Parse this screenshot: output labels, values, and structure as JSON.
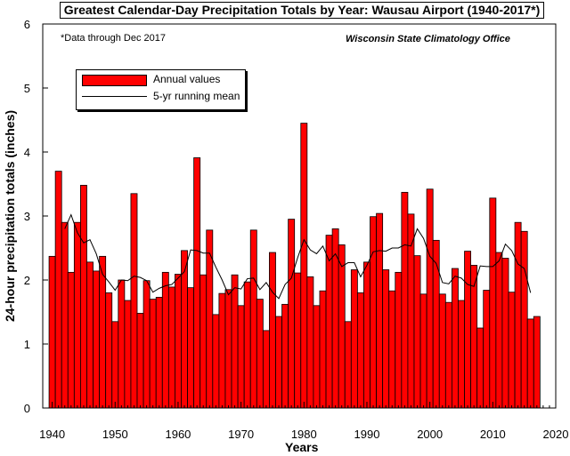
{
  "title": "Greatest Calendar-Day Precipitation Totals by Year: Wausau Airport (1940-2017*)",
  "note": "*Data through Dec 2017",
  "source": "Wisconsin State Climatology Office",
  "legend": {
    "annual": "Annual values",
    "running": "5-yr running mean"
  },
  "colors": {
    "bar": "#ff0000",
    "line": "#000000"
  },
  "chart_data": {
    "type": "bar",
    "title": "Greatest Calendar-Day Precipitation Totals by Year: Wausau Airport (1940-2017*)",
    "xlabel": "Years",
    "ylabel": "24-hour precipitation totals (inches)",
    "xlim": [
      1938.5,
      2020
    ],
    "ylim": [
      0,
      6
    ],
    "xticks": [
      1940,
      1950,
      1960,
      1970,
      1980,
      1990,
      2000,
      2010,
      2020
    ],
    "yticks": [
      0,
      1,
      2,
      3,
      4,
      5,
      6
    ],
    "grid": false,
    "legend_position": "top-left",
    "years": [
      1940,
      1941,
      1942,
      1943,
      1944,
      1945,
      1946,
      1947,
      1948,
      1949,
      1950,
      1951,
      1952,
      1953,
      1954,
      1955,
      1956,
      1957,
      1958,
      1959,
      1960,
      1961,
      1962,
      1963,
      1964,
      1965,
      1966,
      1967,
      1968,
      1969,
      1970,
      1971,
      1972,
      1973,
      1974,
      1975,
      1976,
      1977,
      1978,
      1979,
      1980,
      1981,
      1982,
      1983,
      1984,
      1985,
      1986,
      1987,
      1988,
      1989,
      1990,
      1991,
      1992,
      1993,
      1994,
      1995,
      1996,
      1997,
      1998,
      1999,
      2000,
      2001,
      2002,
      2003,
      2004,
      2005,
      2006,
      2007,
      2008,
      2009,
      2010,
      2011,
      2012,
      2013,
      2014,
      2015,
      2016,
      2017
    ],
    "series": [
      {
        "name": "Annual values",
        "values": [
          2.37,
          3.7,
          2.9,
          2.12,
          2.9,
          3.48,
          2.28,
          2.14,
          2.37,
          1.8,
          1.35,
          2.0,
          1.68,
          3.35,
          1.48,
          1.99,
          1.7,
          1.73,
          2.12,
          1.89,
          2.09,
          2.46,
          1.88,
          3.91,
          2.08,
          2.78,
          1.46,
          1.79,
          1.85,
          2.08,
          1.6,
          1.97,
          2.78,
          1.7,
          1.21,
          2.43,
          1.43,
          1.62,
          2.95,
          2.11,
          4.45,
          2.05,
          1.6,
          1.83,
          2.7,
          2.8,
          2.55,
          1.35,
          2.16,
          1.8,
          2.28,
          2.99,
          3.04,
          2.16,
          1.83,
          2.12,
          3.37,
          3.03,
          2.38,
          1.78,
          3.42,
          2.62,
          1.78,
          1.65,
          2.18,
          1.68,
          2.45,
          2.23,
          1.25,
          1.84,
          3.28,
          2.43,
          2.34,
          1.81,
          2.9,
          2.76,
          1.39,
          1.43
        ]
      },
      {
        "name": "5-yr running mean",
        "x": [
          1942,
          1943,
          1944,
          1945,
          1946,
          1947,
          1948,
          1949,
          1950,
          1951,
          1952,
          1953,
          1954,
          1955,
          1956,
          1957,
          1958,
          1959,
          1960,
          1961,
          1962,
          1963,
          1964,
          1965,
          1966,
          1967,
          1968,
          1969,
          1970,
          1971,
          1972,
          1973,
          1974,
          1975,
          1976,
          1977,
          1978,
          1979,
          1980,
          1981,
          1982,
          1983,
          1984,
          1985,
          1986,
          1987,
          1988,
          1989,
          1990,
          1991,
          1992,
          1993,
          1994,
          1995,
          1996,
          1997,
          1998,
          1999,
          2000,
          2001,
          2002,
          2003,
          2004,
          2005,
          2006,
          2007,
          2008,
          2009,
          2010,
          2011,
          2012,
          2013,
          2014,
          2015,
          2016
        ],
        "values": [
          2.8,
          3.02,
          2.74,
          2.58,
          2.63,
          2.41,
          2.09,
          1.97,
          1.84,
          2.0,
          1.99,
          2.06,
          2.04,
          1.99,
          1.81,
          1.87,
          1.91,
          1.93,
          2.03,
          2.13,
          2.47,
          2.46,
          2.42,
          2.42,
          2.2,
          2.0,
          1.77,
          1.88,
          1.86,
          2.02,
          2.03,
          1.85,
          1.96,
          1.81,
          1.71,
          1.93,
          2.03,
          2.35,
          2.63,
          2.47,
          2.41,
          2.53,
          2.3,
          2.41,
          2.21,
          2.27,
          2.27,
          2.05,
          2.23,
          2.44,
          2.46,
          2.45,
          2.5,
          2.5,
          2.55,
          2.53,
          2.8,
          2.65,
          2.37,
          2.26,
          1.96,
          1.94,
          2.06,
          2.03,
          1.93,
          1.9,
          2.22,
          2.21,
          2.21,
          2.3,
          2.56,
          2.46,
          2.25,
          2.18,
          1.8
        ]
      }
    ]
  }
}
